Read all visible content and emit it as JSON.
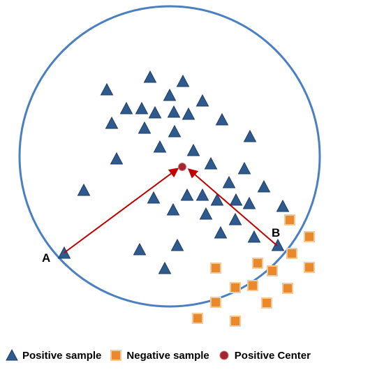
{
  "labels": {
    "point_a": "A",
    "point_b": "B"
  },
  "legend": [
    {
      "label": "Positive sample",
      "icon": "triangle-icon",
      "color": "#2E5A8E"
    },
    {
      "label": "Negative sample",
      "icon": "square-icon",
      "color": "#E8892B"
    },
    {
      "label": "Positive Center",
      "icon": "circle-icon",
      "color": "#A32530"
    }
  ],
  "colors": {
    "boundary": "#4A7FC1",
    "positive_fill": "#2E5A8E",
    "positive_stroke": "#1E3E66",
    "negative_fill": "#E8892B",
    "negative_stroke": "#F5C99A",
    "center": "#A32530",
    "arrow": "#C00000"
  },
  "shapes": {
    "boundary": "circle",
    "arrows": "A → Positive Center, B → Positive Center"
  }
}
